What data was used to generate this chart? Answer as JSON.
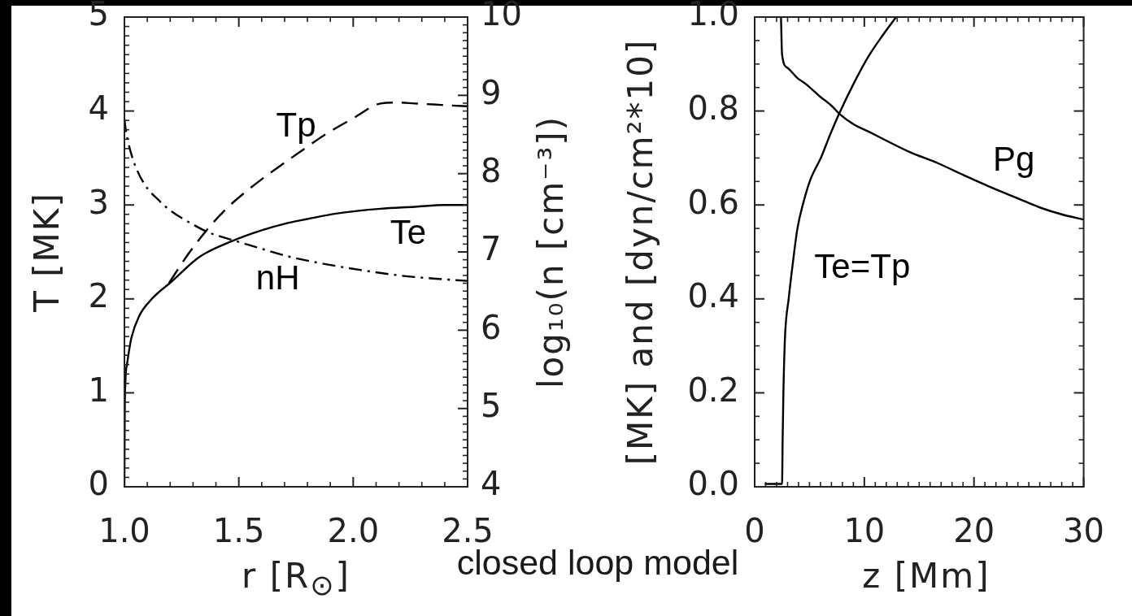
{
  "chart_data": [
    {
      "type": "line",
      "xlabel": "r [R$_{⊙}$]",
      "ylabel": "T [MK]",
      "y2label": "log₁₀(n [cm⁻³])",
      "annotations": [
        "closed loop model"
      ],
      "xlim": [
        1.0,
        2.5
      ],
      "xticks": [
        {
          "value": 1,
          "label": "1.0"
        },
        {
          "value": 1.1,
          "label": null
        },
        {
          "value": 1.2,
          "label": null
        },
        {
          "value": 1.3,
          "label": null
        },
        {
          "value": 1.4,
          "label": null
        },
        1.5,
        {
          "value": 1.6,
          "label": null
        },
        {
          "value": 1.7,
          "label": null
        },
        {
          "value": 1.8,
          "label": null
        },
        {
          "value": 1.9,
          "label": null
        },
        {
          "value": 2,
          "label": "2.0"
        },
        {
          "value": 2.1,
          "label": null
        },
        {
          "value": 2.2,
          "label": null
        },
        {
          "value": 2.3,
          "label": null
        },
        {
          "value": 2.4,
          "label": null
        },
        2.5
      ],
      "ylim": [
        0,
        5
      ],
      "yticks": [
        0,
        {
          "value": 0.1,
          "label": null
        },
        {
          "value": 0.2,
          "label": null
        },
        {
          "value": 0.3,
          "label": null
        },
        {
          "value": 0.4,
          "label": null
        },
        {
          "value": 0.5,
          "label": null
        },
        {
          "value": 0.6,
          "label": null
        },
        {
          "value": 0.7,
          "label": null
        },
        {
          "value": 0.8,
          "label": null
        },
        {
          "value": 0.9,
          "label": null
        },
        1,
        {
          "value": 1.1,
          "label": null
        },
        {
          "value": 1.2,
          "label": null
        },
        {
          "value": 1.3,
          "label": null
        },
        {
          "value": 1.4,
          "label": null
        },
        {
          "value": 1.5,
          "label": null
        },
        {
          "value": 1.6,
          "label": null
        },
        {
          "value": 1.7,
          "label": null
        },
        {
          "value": 1.8,
          "label": null
        },
        {
          "value": 1.9,
          "label": null
        },
        2,
        {
          "value": 2.1,
          "label": null
        },
        {
          "value": 2.2,
          "label": null
        },
        {
          "value": 2.3,
          "label": null
        },
        {
          "value": 2.4,
          "label": null
        },
        {
          "value": 2.5,
          "label": null
        },
        {
          "value": 2.6,
          "label": null
        },
        {
          "value": 2.7,
          "label": null
        },
        {
          "value": 2.8,
          "label": null
        },
        {
          "value": 2.9,
          "label": null
        },
        3,
        {
          "value": 3.1,
          "label": null
        },
        {
          "value": 3.2,
          "label": null
        },
        {
          "value": 3.3,
          "label": null
        },
        {
          "value": 3.4,
          "label": null
        },
        {
          "value": 3.5,
          "label": null
        },
        {
          "value": 3.6,
          "label": null
        },
        {
          "value": 3.7,
          "label": null
        },
        {
          "value": 3.8,
          "label": null
        },
        {
          "value": 3.9,
          "label": null
        },
        4,
        {
          "value": 4.1,
          "label": null
        },
        {
          "value": 4.2,
          "label": null
        },
        {
          "value": 4.3,
          "label": null
        },
        {
          "value": 4.4,
          "label": null
        },
        {
          "value": 4.5,
          "label": null
        },
        {
          "value": 4.6,
          "label": null
        },
        {
          "value": 4.7,
          "label": null
        },
        {
          "value": 4.8,
          "label": null
        },
        {
          "value": 4.9,
          "label": null
        },
        5
      ],
      "y2lim": [
        4,
        10
      ],
      "y2ticks": [
        4,
        {
          "value": 4.1,
          "label": null
        },
        {
          "value": 4.2,
          "label": null
        },
        {
          "value": 4.3,
          "label": null
        },
        {
          "value": 4.4,
          "label": null
        },
        {
          "value": 4.5,
          "label": null
        },
        {
          "value": 4.6,
          "label": null
        },
        {
          "value": 4.7,
          "label": null
        },
        {
          "value": 4.8,
          "label": null
        },
        {
          "value": 4.9,
          "label": null
        },
        5,
        {
          "value": 5.1,
          "label": null
        },
        {
          "value": 5.2,
          "label": null
        },
        {
          "value": 5.3,
          "label": null
        },
        {
          "value": 5.4,
          "label": null
        },
        {
          "value": 5.5,
          "label": null
        },
        {
          "value": 5.6,
          "label": null
        },
        {
          "value": 5.7,
          "label": null
        },
        {
          "value": 5.8,
          "label": null
        },
        {
          "value": 5.9,
          "label": null
        },
        6,
        {
          "value": 6.1,
          "label": null
        },
        {
          "value": 6.2,
          "label": null
        },
        {
          "value": 6.3,
          "label": null
        },
        {
          "value": 6.4,
          "label": null
        },
        {
          "value": 6.5,
          "label": null
        },
        {
          "value": 6.6,
          "label": null
        },
        {
          "value": 6.7,
          "label": null
        },
        {
          "value": 6.8,
          "label": null
        },
        {
          "value": 6.9,
          "label": null
        },
        7,
        {
          "value": 7.1,
          "label": null
        },
        {
          "value": 7.2,
          "label": null
        },
        {
          "value": 7.3,
          "label": null
        },
        {
          "value": 7.4,
          "label": null
        },
        {
          "value": 7.5,
          "label": null
        },
        {
          "value": 7.6,
          "label": null
        },
        {
          "value": 7.7,
          "label": null
        },
        {
          "value": 7.8,
          "label": null
        },
        {
          "value": 7.9,
          "label": null
        },
        8,
        {
          "value": 8.1,
          "label": null
        },
        {
          "value": 8.2,
          "label": null
        },
        {
          "value": 8.3,
          "label": null
        },
        {
          "value": 8.4,
          "label": null
        },
        {
          "value": 8.5,
          "label": null
        },
        {
          "value": 8.6,
          "label": null
        },
        {
          "value": 8.7,
          "label": null
        },
        {
          "value": 8.8,
          "label": null
        },
        {
          "value": 8.9,
          "label": null
        },
        9,
        {
          "value": 9.1,
          "label": null
        },
        {
          "value": 9.2,
          "label": null
        },
        {
          "value": 9.3,
          "label": null
        },
        {
          "value": 9.4,
          "label": null
        },
        {
          "value": 9.5,
          "label": null
        },
        {
          "value": 9.6,
          "label": null
        },
        {
          "value": 9.7,
          "label": null
        },
        {
          "value": 9.8,
          "label": null
        },
        {
          "value": 9.9,
          "label": null
        },
        10
      ],
      "series": [
        {
          "name": "Te",
          "color": "#000000",
          "line_style": "solid",
          "x": [
            1.0,
            1.001,
            1.002,
            1.011,
            1.03,
            1.065,
            1.12,
            1.204,
            1.33,
            1.475,
            1.6,
            1.7,
            1.8,
            1.93,
            2.12,
            2.27,
            2.4,
            2.5
          ],
          "values": [
            0,
            0.55,
            0.93,
            1.3,
            1.58,
            1.82,
            2.0,
            2.18,
            2.45,
            2.62,
            2.73,
            2.8,
            2.85,
            2.91,
            2.96,
            2.98,
            3.0,
            3.0
          ]
        },
        {
          "name": "Tp",
          "color": "#000000",
          "line_style": "dashed",
          "x": [
            1.195,
            1.28,
            1.366,
            1.45,
            1.53,
            1.62,
            1.7,
            1.776,
            1.878,
            2.005,
            2.12,
            2.2,
            2.27,
            2.35,
            2.42,
            2.5
          ],
          "values": [
            2.17,
            2.48,
            2.75,
            2.97,
            3.14,
            3.31,
            3.45,
            3.58,
            3.75,
            3.93,
            4.08,
            4.09,
            4.08,
            4.07,
            4.06,
            4.05
          ]
        },
        {
          "name": "nH",
          "color": "#000000",
          "line_style": "dashdot",
          "axis": "y2",
          "x": [
            1.0,
            1.005,
            1.015,
            1.028,
            1.05,
            1.091,
            1.15,
            1.2,
            1.3,
            1.367,
            1.475,
            1.6,
            1.72,
            1.85,
            2.03,
            2.2,
            2.35,
            2.5
          ],
          "values": [
            8.7,
            8.58,
            8.42,
            8.27,
            8.08,
            7.85,
            7.66,
            7.53,
            7.35,
            7.25,
            7.15,
            7.04,
            6.94,
            6.86,
            6.77,
            6.7,
            6.66,
            6.63
          ]
        }
      ]
    },
    {
      "type": "line",
      "xlabel": "z [Mm]",
      "ylabel": "[MK] and [dyn/cm²*10]",
      "xlim": [
        0,
        30
      ],
      "xticks": [
        0,
        {
          "value": 1,
          "label": null
        },
        {
          "value": 2,
          "label": null
        },
        {
          "value": 3,
          "label": null
        },
        {
          "value": 4,
          "label": null
        },
        {
          "value": 5,
          "label": null
        },
        {
          "value": 6,
          "label": null
        },
        {
          "value": 7,
          "label": null
        },
        {
          "value": 8,
          "label": null
        },
        {
          "value": 9,
          "label": null
        },
        10,
        {
          "value": 11,
          "label": null
        },
        {
          "value": 12,
          "label": null
        },
        {
          "value": 13,
          "label": null
        },
        {
          "value": 14,
          "label": null
        },
        {
          "value": 15,
          "label": null
        },
        {
          "value": 16,
          "label": null
        },
        {
          "value": 17,
          "label": null
        },
        {
          "value": 18,
          "label": null
        },
        {
          "value": 19,
          "label": null
        },
        20,
        {
          "value": 21,
          "label": null
        },
        {
          "value": 22,
          "label": null
        },
        {
          "value": 23,
          "label": null
        },
        {
          "value": 24,
          "label": null
        },
        {
          "value": 25,
          "label": null
        },
        {
          "value": 26,
          "label": null
        },
        {
          "value": 27,
          "label": null
        },
        {
          "value": 28,
          "label": null
        },
        {
          "value": 29,
          "label": null
        },
        30
      ],
      "ylim": [
        0,
        1
      ],
      "yticks": [
        {
          "value": 0,
          "label": "0.0"
        },
        {
          "value": 0.05,
          "label": null
        },
        {
          "value": 0.1,
          "label": null
        },
        {
          "value": 0.15,
          "label": null
        },
        0.2,
        {
          "value": 0.25,
          "label": null
        },
        {
          "value": 0.3,
          "label": null
        },
        {
          "value": 0.35,
          "label": null
        },
        0.4,
        {
          "value": 0.45,
          "label": null
        },
        {
          "value": 0.5,
          "label": null
        },
        {
          "value": 0.55,
          "label": null
        },
        0.6,
        {
          "value": 0.65,
          "label": null
        },
        {
          "value": 0.7,
          "label": null
        },
        {
          "value": 0.75,
          "label": null
        },
        0.8,
        {
          "value": 0.85,
          "label": null
        },
        {
          "value": 0.9,
          "label": null
        },
        {
          "value": 0.95,
          "label": null
        },
        {
          "value": 1,
          "label": "1.0"
        }
      ],
      "series": [
        {
          "name": "Te=Tp",
          "color": "#000000",
          "line_style": "solid",
          "x": [
            0.92,
            2.5,
            2.55,
            2.62,
            2.77,
            3.1,
            3.5,
            3.9,
            4.5,
            5.1,
            6.07,
            6.8,
            7.7,
            9,
            10.4,
            11.7,
            12.9
          ],
          "values": [
            0.006,
            0.006,
            0.1,
            0.2,
            0.32,
            0.4,
            0.48,
            0.55,
            0.61,
            0.655,
            0.702,
            0.745,
            0.794,
            0.857,
            0.917,
            0.962,
            1.0
          ]
        },
        {
          "name": "Pg",
          "color": "#000000",
          "line_style": "solid",
          "x": [
            2.4,
            2.5,
            2.99,
            3.9,
            4.64,
            6,
            7.02,
            7.73,
            9,
            10.57,
            12,
            14.1,
            16.7,
            19,
            21.4,
            24,
            26.2,
            28,
            30
          ],
          "values": [
            1.0,
            0.92,
            0.892,
            0.87,
            0.858,
            0.83,
            0.811,
            0.794,
            0.772,
            0.754,
            0.737,
            0.713,
            0.689,
            0.664,
            0.639,
            0.614,
            0.593,
            0.58,
            0.569
          ]
        }
      ]
    }
  ]
}
